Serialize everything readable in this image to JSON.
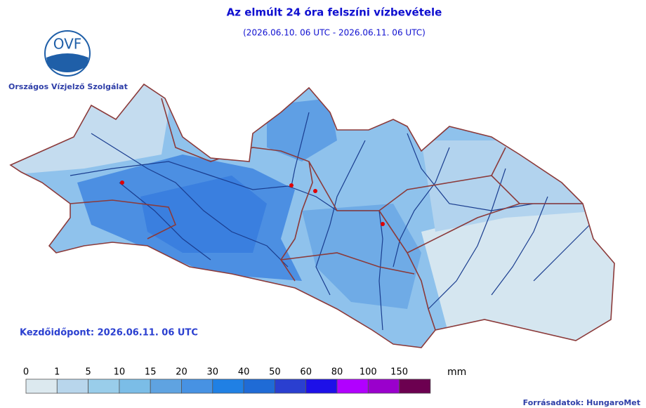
{
  "header": {
    "title": "Az elmúlt 24 óra felszíni vízbevétele",
    "subtitle": "(2026.06.10. 06 UTC - 2026.06.11. 06 UTC)"
  },
  "logo": {
    "text": "OVF",
    "org": "Országos Vízjelző Szolgálat"
  },
  "start_time": "Kezdőidőpont: 2026.06.11. 06 UTC",
  "legend": {
    "unit": "mm",
    "breaks": [
      0,
      1,
      5,
      10,
      15,
      20,
      30,
      40,
      50,
      60,
      80,
      100,
      150
    ],
    "colors": [
      "#dce9ef",
      "#b8d6ec",
      "#99cdea",
      "#7bbde7",
      "#5fa3e1",
      "#4792e3",
      "#2080e4",
      "#1f6bd6",
      "#2a3fd0",
      "#1d10e8",
      "#b100ff",
      "#9a00cc",
      "#6c0050"
    ]
  },
  "source": "Forrásadatok: HungaroMet"
}
